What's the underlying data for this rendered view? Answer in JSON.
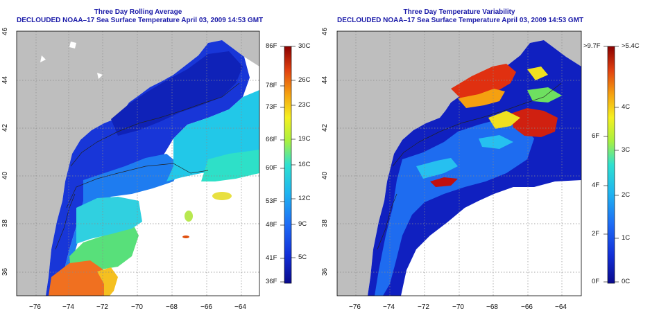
{
  "left_panel": {
    "title": "Three Day Rolling Average",
    "subtitle": "DECLOUDED NOAA–17 Sea Surface Temperature April 03, 2009 14:53 GMT",
    "x_ticks": [
      "−76",
      "−74",
      "−72",
      "−70",
      "−68",
      "−66",
      "−64"
    ],
    "y_ticks": [
      "46",
      "44",
      "42",
      "40",
      "38",
      "36"
    ],
    "colorbar": {
      "f_labels": [
        "86F",
        "78F",
        "73F",
        "66F",
        "60F",
        "53F",
        "48F",
        "41F",
        "36F"
      ],
      "c_labels": [
        "30C",
        "26C",
        "23C",
        "19C",
        "16C",
        "12C",
        "9C",
        "5C"
      ]
    }
  },
  "right_panel": {
    "title": "Three Day Temperature Variability",
    "subtitle": "DECLOUDED NOAA–17 Sea Surface Temperature April 03, 2009 14:53 GMT",
    "x_ticks": [
      "−76",
      "−74",
      "−72",
      "−70",
      "−68",
      "−66",
      "−64"
    ],
    "y_ticks": [
      "46",
      "44",
      "42",
      "40",
      "38",
      "36"
    ],
    "colorbar": {
      "f_labels": [
        ">9.7F",
        "6F",
        "4F",
        "2F",
        "0F"
      ],
      "c_labels": [
        ">5.4C",
        "4C",
        "3C",
        "2C",
        "1C",
        "0C"
      ]
    }
  },
  "colors": {
    "title": "#1a1aa8",
    "land": "#bebebe",
    "no_data": "#ffffff",
    "grid": "#8a8a8a"
  }
}
